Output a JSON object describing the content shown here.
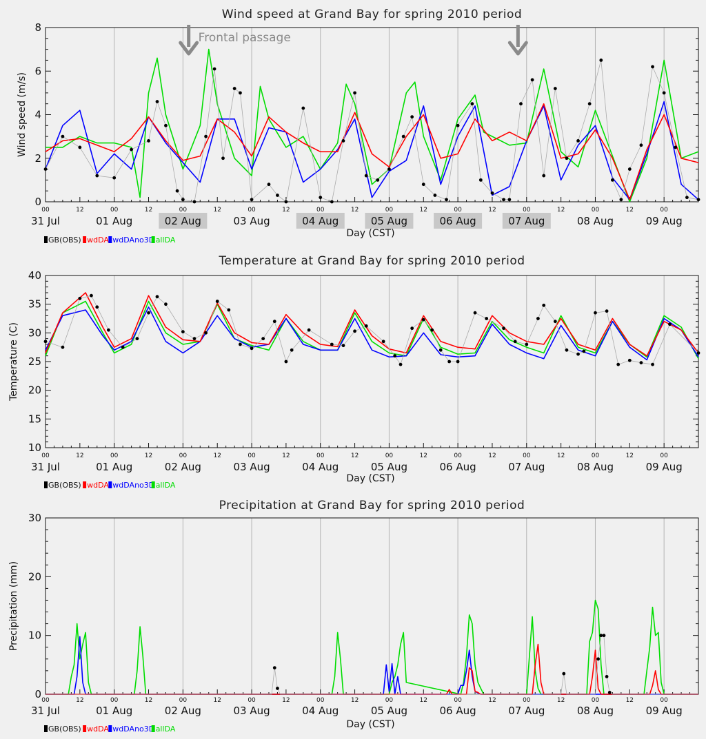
{
  "figure": {
    "x_axis_label": "Day (CST)",
    "day_labels": [
      "31 Jul",
      "01 Aug",
      "02 Aug",
      "03 Aug",
      "04 Aug",
      "05 Aug",
      "06 Aug",
      "07 Aug",
      "08 Aug",
      "09 Aug"
    ],
    "hour_labels": [
      "00",
      "12"
    ],
    "legend": [
      {
        "name": "GB(OBS)",
        "color": "#000000"
      },
      {
        "name": "wdDA",
        "color": "#ff0000"
      },
      {
        "name": "wdDAno3D",
        "color": "#0000ff"
      },
      {
        "name": "allDA",
        "color": "#00dd00"
      }
    ]
  },
  "chart_data": [
    {
      "type": "line",
      "title": "Wind speed at Grand Bay for spring 2010 period",
      "xlabel": "Day (CST)",
      "ylabel": "Wind speed (m/s)",
      "x_unit": "hours since 31 Jul 00 CST",
      "xlim": [
        0,
        228
      ],
      "ylim": [
        0,
        8
      ],
      "yticks": [
        0,
        2,
        4,
        6,
        8
      ],
      "grid": "vertical at 00 each day",
      "annotations": [
        {
          "text": "Frontal passage",
          "type": "arrow",
          "x_hours": [
            50,
            165
          ]
        }
      ],
      "highlighted_day_labels": [
        "02 Aug",
        "04 Aug",
        "05 Aug",
        "06 Aug",
        "07 Aug"
      ],
      "series": [
        {
          "name": "GB(OBS)",
          "x": [
            0,
            6,
            12,
            18,
            24,
            30,
            36,
            39,
            42,
            46,
            48,
            52,
            56,
            59,
            62,
            66,
            68,
            72,
            78,
            81,
            84,
            90,
            96,
            100,
            104,
            108,
            112,
            116,
            120,
            125,
            128,
            132,
            136,
            140,
            144,
            149,
            152,
            156,
            160,
            162,
            166,
            170,
            174,
            178,
            182,
            186,
            190,
            194,
            198,
            201,
            204,
            208,
            212,
            216,
            220,
            224,
            228
          ],
          "values": [
            1.5,
            3.0,
            2.5,
            1.2,
            1.1,
            2.4,
            2.8,
            4.6,
            3.5,
            0.5,
            0.1,
            0.0,
            3.0,
            6.1,
            2.0,
            5.2,
            5.0,
            0.1,
            0.8,
            0.3,
            0.0,
            4.3,
            0.2,
            0.0,
            2.8,
            5.0,
            1.2,
            1.0,
            1.5,
            3.0,
            3.9,
            0.8,
            0.3,
            0.1,
            3.5,
            4.5,
            1.0,
            0.4,
            0.1,
            0.1,
            4.5,
            5.6,
            1.2,
            5.2,
            2.0,
            2.8,
            4.5,
            6.5,
            1.0,
            0.1,
            1.5,
            2.6,
            6.2,
            5.0,
            2.5,
            0.2,
            0.1
          ]
        },
        {
          "name": "wdDA",
          "x": [
            0,
            6,
            12,
            18,
            24,
            30,
            36,
            42,
            48,
            54,
            60,
            66,
            72,
            78,
            84,
            90,
            96,
            102,
            108,
            114,
            120,
            126,
            132,
            138,
            144,
            150,
            156,
            162,
            168,
            174,
            180,
            186,
            192,
            198,
            204,
            210,
            216,
            222,
            228
          ],
          "values": [
            2.3,
            2.8,
            2.9,
            2.6,
            2.3,
            2.9,
            3.9,
            2.8,
            1.9,
            2.1,
            3.8,
            3.2,
            2.1,
            3.9,
            3.2,
            2.7,
            2.3,
            2.3,
            4.1,
            2.2,
            1.6,
            3.0,
            4.0,
            2.0,
            2.2,
            3.8,
            2.8,
            3.2,
            2.8,
            4.5,
            2.0,
            2.2,
            3.3,
            2.0,
            0.1,
            2.4,
            4.0,
            2.0,
            1.8
          ]
        },
        {
          "name": "wdDAno3D",
          "x": [
            0,
            6,
            12,
            18,
            24,
            30,
            36,
            42,
            48,
            54,
            60,
            66,
            72,
            78,
            84,
            90,
            96,
            102,
            108,
            114,
            120,
            126,
            132,
            138,
            144,
            150,
            156,
            162,
            168,
            174,
            180,
            186,
            192,
            198,
            204,
            210,
            216,
            222,
            228
          ],
          "values": [
            1.5,
            3.5,
            4.2,
            1.3,
            2.2,
            1.5,
            3.9,
            2.7,
            1.8,
            0.9,
            3.8,
            3.8,
            1.5,
            3.4,
            3.2,
            0.9,
            1.5,
            2.4,
            3.8,
            0.2,
            1.4,
            1.9,
            4.4,
            0.8,
            3.0,
            4.4,
            0.3,
            0.7,
            2.8,
            4.4,
            1.0,
            2.6,
            3.5,
            1.1,
            0.1,
            2.2,
            4.6,
            0.8,
            0.1
          ]
        },
        {
          "name": "allDA",
          "x": [
            0,
            6,
            12,
            18,
            24,
            30,
            33,
            36,
            39,
            42,
            48,
            54,
            57,
            60,
            66,
            72,
            75,
            78,
            84,
            90,
            96,
            102,
            105,
            108,
            114,
            120,
            126,
            129,
            132,
            138,
            144,
            150,
            153,
            156,
            162,
            168,
            174,
            180,
            186,
            192,
            198,
            204,
            210,
            216,
            222,
            228
          ],
          "values": [
            2.5,
            2.5,
            3.0,
            2.7,
            2.7,
            2.5,
            0.2,
            5.0,
            6.6,
            4.0,
            1.5,
            3.5,
            7.0,
            4.5,
            2.0,
            1.2,
            5.3,
            3.8,
            2.5,
            3.0,
            1.5,
            2.7,
            5.4,
            4.5,
            0.8,
            1.5,
            5.0,
            5.5,
            3.0,
            1.0,
            3.8,
            4.9,
            3.2,
            3.0,
            2.6,
            2.7,
            6.1,
            2.3,
            1.6,
            4.2,
            2.1,
            0.0,
            2.0,
            6.5,
            2.0,
            2.3
          ]
        }
      ]
    },
    {
      "type": "line",
      "title": "Temperature at Grand Bay for spring 2010 period",
      "xlabel": "Day (CST)",
      "ylabel": "Temperature (C)",
      "x_unit": "hours since 31 Jul 00 CST",
      "xlim": [
        0,
        228
      ],
      "ylim": [
        10,
        40
      ],
      "yticks": [
        10,
        15,
        20,
        25,
        30,
        35,
        40
      ],
      "grid": "vertical at 00 each day",
      "series": [
        {
          "name": "GB(OBS)",
          "x": [
            0,
            6,
            12,
            16,
            18,
            22,
            27,
            32,
            36,
            39,
            42,
            48,
            52,
            56,
            60,
            64,
            68,
            72,
            76,
            80,
            84,
            86,
            92,
            100,
            104,
            108,
            112,
            118,
            122,
            124,
            128,
            132,
            135,
            138,
            141,
            144,
            150,
            154,
            160,
            164,
            168,
            172,
            174,
            178,
            182,
            186,
            188,
            192,
            196,
            200,
            204,
            208,
            212,
            218,
            228
          ],
          "values": [
            28.5,
            27.5,
            36.0,
            36.5,
            34.5,
            30.5,
            27.5,
            29.0,
            33.5,
            36.3,
            35.0,
            30.2,
            29.0,
            30.0,
            35.5,
            34.0,
            28.0,
            27.3,
            29.0,
            32.0,
            25.0,
            27.0,
            30.5,
            28.0,
            27.8,
            30.3,
            31.2,
            28.5,
            26.0,
            24.5,
            30.8,
            32.3,
            30.5,
            27.0,
            25.0,
            25.0,
            33.5,
            32.5,
            30.8,
            28.5,
            28.0,
            32.5,
            34.8,
            32.0,
            27.0,
            26.3,
            26.8,
            33.5,
            33.8,
            24.5,
            25.2,
            24.8,
            24.5,
            31.5,
            26.5
          ]
        },
        {
          "name": "wdDA",
          "x": [
            0,
            6,
            14,
            20,
            24,
            30,
            36,
            42,
            48,
            54,
            60,
            66,
            72,
            78,
            84,
            90,
            96,
            102,
            108,
            114,
            120,
            126,
            132,
            138,
            144,
            150,
            156,
            162,
            168,
            174,
            180,
            186,
            192,
            198,
            204,
            210,
            216,
            222,
            228
          ],
          "values": [
            26.5,
            33.5,
            37.0,
            31.0,
            27.5,
            29.0,
            36.5,
            31.0,
            28.8,
            28.5,
            35.2,
            30.0,
            28.3,
            28.0,
            33.2,
            30.0,
            28.0,
            27.6,
            34.0,
            29.5,
            27.2,
            26.5,
            33.0,
            28.5,
            27.5,
            27.2,
            33.0,
            30.0,
            28.5,
            28.0,
            32.5,
            28.0,
            27.0,
            32.5,
            28.0,
            26.0,
            32.0,
            30.5,
            26.5
          ]
        },
        {
          "name": "wdDAno3D",
          "x": [
            0,
            6,
            14,
            20,
            24,
            30,
            36,
            42,
            48,
            54,
            60,
            66,
            72,
            78,
            84,
            90,
            96,
            102,
            108,
            114,
            120,
            126,
            132,
            138,
            144,
            150,
            156,
            162,
            168,
            174,
            180,
            186,
            192,
            198,
            204,
            210,
            216,
            222,
            228
          ],
          "values": [
            27.0,
            33.0,
            34.0,
            29.5,
            27.0,
            28.5,
            34.5,
            28.5,
            26.5,
            28.5,
            33.0,
            29.0,
            27.5,
            28.0,
            32.5,
            28.0,
            27.0,
            27.0,
            32.5,
            27.0,
            25.8,
            26.0,
            30.0,
            26.2,
            25.8,
            26.0,
            31.5,
            28.0,
            26.5,
            25.5,
            31.3,
            27.0,
            26.0,
            32.0,
            27.5,
            25.3,
            32.5,
            30.5,
            25.8
          ]
        },
        {
          "name": "allDA",
          "x": [
            0,
            6,
            14,
            20,
            24,
            30,
            36,
            42,
            48,
            54,
            60,
            66,
            72,
            78,
            84,
            90,
            96,
            102,
            108,
            114,
            120,
            126,
            132,
            138,
            144,
            150,
            156,
            162,
            168,
            174,
            180,
            186,
            192,
            198,
            204,
            210,
            216,
            222,
            228
          ],
          "values": [
            26.0,
            33.5,
            35.5,
            30.0,
            26.5,
            28.0,
            35.5,
            30.0,
            28.0,
            28.5,
            35.0,
            29.0,
            27.8,
            27.0,
            32.5,
            28.5,
            27.0,
            27.0,
            33.5,
            28.5,
            26.5,
            26.0,
            32.5,
            27.5,
            26.3,
            26.5,
            32.0,
            28.8,
            27.5,
            26.5,
            33.0,
            27.5,
            26.5,
            32.0,
            28.0,
            25.8,
            33.0,
            31.0,
            25.5
          ]
        }
      ]
    },
    {
      "type": "line",
      "title": "Precipitation at Grand Bay for spring 2010 period",
      "xlabel": "Day (CST)",
      "ylabel": "Precipitation (mm)",
      "x_unit": "hours since 31 Jul 00 CST",
      "xlim": [
        0,
        228
      ],
      "ylim": [
        0,
        30
      ],
      "yticks": [
        0,
        10,
        20,
        30
      ],
      "grid": "vertical at 00 each day",
      "series": [
        {
          "name": "GB(OBS)",
          "x": [
            0,
            78,
            79,
            80,
            81,
            82,
            180,
            181,
            182,
            192,
            193,
            194,
            195,
            196,
            197,
            198,
            228
          ],
          "values": [
            0,
            0,
            0,
            4.5,
            1,
            0,
            0,
            3.5,
            0,
            0,
            6,
            10,
            10,
            3,
            0.3,
            0,
            0
          ]
        },
        {
          "name": "wdDA",
          "x": [
            0,
            140,
            141,
            142,
            147,
            148,
            149,
            150,
            151,
            152,
            170,
            171,
            172,
            173,
            174,
            190,
            191,
            192,
            193,
            194,
            211,
            212,
            213,
            214,
            215,
            228
          ],
          "values": [
            0,
            0,
            0.8,
            0,
            0,
            4.5,
            4,
            0.5,
            0.3,
            0,
            0,
            5,
            8.5,
            2,
            0,
            0,
            3,
            7.5,
            1,
            0,
            0,
            1.5,
            4,
            0.8,
            0,
            0
          ]
        },
        {
          "name": "wdDAno3D",
          "x": [
            0,
            10,
            11,
            12,
            13,
            14,
            118,
            119,
            120,
            121,
            122,
            123,
            124,
            144,
            145,
            146,
            147,
            148,
            149,
            150,
            151,
            152,
            228
          ],
          "values": [
            0,
            0,
            3,
            9.8,
            2,
            0,
            0,
            5,
            0.5,
            5.2,
            0,
            3,
            0,
            0,
            1.5,
            1.5,
            4,
            7.5,
            3,
            0.5,
            0.2,
            0,
            0
          ]
        },
        {
          "name": "allDA",
          "x": [
            0,
            8,
            9,
            10,
            11,
            12,
            13,
            14,
            15,
            16,
            31,
            32,
            33,
            34,
            35,
            100,
            101,
            102,
            103,
            104,
            120,
            121,
            122,
            123,
            124,
            125,
            126,
            145,
            146,
            147,
            148,
            149,
            150,
            151,
            152,
            153,
            168,
            169,
            170,
            171,
            172,
            173,
            189,
            190,
            191,
            192,
            193,
            194,
            195,
            209,
            210,
            211,
            212,
            213,
            214,
            215,
            216,
            228
          ],
          "values": [
            0,
            0,
            3,
            5,
            12,
            6,
            8.5,
            10.5,
            2,
            0,
            0,
            4,
            11.5,
            6.5,
            0,
            0,
            3,
            10.5,
            6,
            0,
            0,
            2,
            3,
            5,
            8.5,
            10.5,
            2,
            0,
            2,
            6.5,
            13.5,
            12,
            5,
            2,
            1,
            0,
            0,
            6.5,
            13.2,
            4,
            1,
            0,
            0,
            9,
            10.5,
            16,
            14.5,
            5,
            0,
            0,
            4,
            8,
            14.8,
            10,
            10.5,
            2,
            0,
            0
          ]
        }
      ]
    }
  ]
}
